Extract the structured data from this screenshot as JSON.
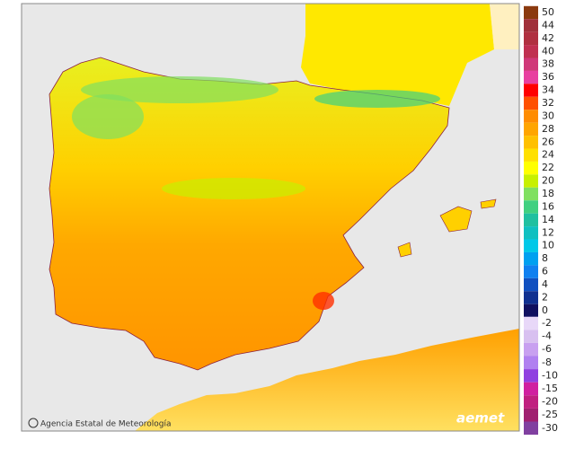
{
  "legend": {
    "positive": [
      {
        "label": 50,
        "color": "#8b3a0f"
      },
      {
        "label": 44,
        "color": "#a0303a"
      },
      {
        "label": 42,
        "color": "#b03040"
      },
      {
        "label": 40,
        "color": "#c03050"
      },
      {
        "label": 38,
        "color": "#d03878"
      },
      {
        "label": 36,
        "color": "#e840a0"
      },
      {
        "label": 34,
        "color": "#ff0000"
      },
      {
        "label": 32,
        "color": "#ff5000"
      },
      {
        "label": 30,
        "color": "#ff8c00"
      },
      {
        "label": 28,
        "color": "#ffa500"
      },
      {
        "label": 26,
        "color": "#ffc000"
      },
      {
        "label": 24,
        "color": "#ffe000"
      },
      {
        "label": 22,
        "color": "#ffff00"
      },
      {
        "label": 20,
        "color": "#c8f000"
      },
      {
        "label": 18,
        "color": "#80e060"
      },
      {
        "label": 16,
        "color": "#40d080"
      },
      {
        "label": 14,
        "color": "#20c0a0"
      },
      {
        "label": 12,
        "color": "#10c0c0"
      },
      {
        "label": 10,
        "color": "#00c8e8"
      },
      {
        "label": 8,
        "color": "#00a0f0"
      },
      {
        "label": 6,
        "color": "#1080f0"
      },
      {
        "label": 4,
        "color": "#1050c0"
      },
      {
        "label": 2,
        "color": "#103090"
      },
      {
        "label": 0,
        "color": "#101060"
      }
    ],
    "negative": [
      {
        "label": -2,
        "color": "#e8d8f8"
      },
      {
        "label": -4,
        "color": "#d8c0f0"
      },
      {
        "label": -6,
        "color": "#c8a0f0"
      },
      {
        "label": -8,
        "color": "#b080f0"
      },
      {
        "label": -10,
        "color": "#9040e0"
      },
      {
        "label": -15,
        "color": "#d020a0"
      },
      {
        "label": -20,
        "color": "#c02080"
      },
      {
        "label": -25,
        "color": "#a02070"
      },
      {
        "label": -30,
        "color": "#8040a0"
      }
    ]
  },
  "footer": {
    "agency": "Agencia Estatal de Meteorología",
    "logo": "aemet"
  }
}
